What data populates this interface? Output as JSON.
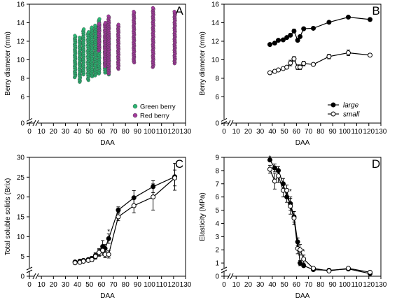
{
  "chart_data": [
    {
      "type": "scatter",
      "panel": "A",
      "xlabel": "DAA",
      "ylabel": "Berry diameter (mm)",
      "xlim": [
        0,
        130
      ],
      "ylim": [
        4,
        16
      ],
      "xticks": [
        0,
        10,
        20,
        30,
        40,
        50,
        60,
        70,
        80,
        90,
        100,
        110,
        120,
        130
      ],
      "yticks": [
        0,
        6,
        8,
        10,
        12,
        14,
        16
      ],
      "axis_break": true,
      "legend_position": "bottom-right",
      "series": [
        {
          "name": "Green berry",
          "color": "#2bb673",
          "columns": [
            {
              "x": 38,
              "min": 8.1,
              "max": 12.6
            },
            {
              "x": 42,
              "min": 7.6,
              "max": 12.4
            },
            {
              "x": 45,
              "min": 8.4,
              "max": 13.3
            },
            {
              "x": 49,
              "min": 7.8,
              "max": 13.0
            },
            {
              "x": 52,
              "min": 8.2,
              "max": 13.5
            },
            {
              "x": 55,
              "min": 8.3,
              "max": 13.7
            },
            {
              "x": 58,
              "min": 8.5,
              "max": 14.4
            },
            {
              "x": 63,
              "min": 8.6,
              "max": 12.4
            },
            {
              "x": 66,
              "min": 8.4,
              "max": 12.8
            }
          ]
        },
        {
          "name": "Red berry",
          "color": "#a23a9c",
          "columns": [
            {
              "x": 58,
              "min": 11.0,
              "max": 13.9
            },
            {
              "x": 63,
              "min": 9.3,
              "max": 14.0
            },
            {
              "x": 66,
              "min": 8.5,
              "max": 14.7
            },
            {
              "x": 74,
              "min": 9.0,
              "max": 13.8
            },
            {
              "x": 87,
              "min": 9.7,
              "max": 15.2
            },
            {
              "x": 103,
              "min": 9.2,
              "max": 15.6
            },
            {
              "x": 121,
              "min": 9.6,
              "max": 15.2
            }
          ]
        }
      ]
    },
    {
      "type": "line",
      "panel": "B",
      "xlabel": "DAA",
      "ylabel": "Berry diameter (mm)",
      "xlim": [
        0,
        130
      ],
      "ylim": [
        4,
        16
      ],
      "xticks": [
        0,
        10,
        20,
        30,
        40,
        50,
        60,
        70,
        80,
        90,
        100,
        110,
        120,
        130
      ],
      "yticks": [
        0,
        6,
        8,
        10,
        12,
        14,
        16
      ],
      "axis_break": true,
      "legend_position": "bottom-right",
      "x": [
        38,
        42,
        45,
        49,
        52,
        55,
        58,
        61,
        63,
        66,
        74,
        87,
        103,
        121
      ],
      "series": [
        {
          "name": "large",
          "marker": "filled",
          "values": [
            11.65,
            11.8,
            12.1,
            12.15,
            12.4,
            12.65,
            13.1,
            12.1,
            12.5,
            13.35,
            13.4,
            14.05,
            14.6,
            14.35
          ],
          "errors": [
            0.1,
            0.1,
            0.1,
            0.1,
            0.1,
            0.15,
            0.2,
            0.15,
            0.15,
            0.1,
            0.15,
            0.1,
            0.15,
            0.12
          ]
        },
        {
          "name": "small",
          "marker": "open",
          "values": [
            8.6,
            8.75,
            8.9,
            9.05,
            9.2,
            9.65,
            10.1,
            9.2,
            9.2,
            9.6,
            9.5,
            10.35,
            10.75,
            10.5
          ],
          "errors": [
            0.1,
            0.1,
            0.15,
            0.15,
            0.15,
            0.3,
            0.25,
            0.25,
            0.25,
            0.25,
            0.15,
            0.25,
            0.3,
            0.15
          ]
        }
      ]
    },
    {
      "type": "line",
      "panel": "C",
      "xlabel": "DAA",
      "ylabel": "Total soluble solids (Brix)",
      "xlim": [
        0,
        130
      ],
      "ylim": [
        0,
        30
      ],
      "xticks": [
        0,
        10,
        20,
        30,
        40,
        50,
        60,
        70,
        80,
        90,
        100,
        110,
        120,
        130
      ],
      "yticks": [
        0,
        5,
        10,
        15,
        20,
        25,
        30
      ],
      "axis_break": true,
      "x": [
        38,
        42,
        45,
        49,
        52,
        55,
        58,
        61,
        63,
        66,
        74,
        87,
        103,
        121
      ],
      "annotations": [
        {
          "x": 66,
          "y": 11.6,
          "text": "*"
        }
      ],
      "series": [
        {
          "name": "",
          "marker": "filled",
          "values": [
            3.6,
            3.8,
            4.0,
            4.2,
            4.5,
            5.2,
            6.0,
            7.5,
            7.0,
            9.5,
            16.7,
            19.8,
            22.6,
            25.1
          ],
          "errors": [
            0.3,
            0.3,
            0.3,
            0.4,
            0.5,
            0.7,
            1.0,
            1.5,
            1.0,
            1.2,
            0.8,
            1.8,
            1.5,
            3.4
          ]
        },
        {
          "name": "",
          "marker": "open",
          "values": [
            3.4,
            3.5,
            3.8,
            4.0,
            4.2,
            5.0,
            6.0,
            6.5,
            5.5,
            5.5,
            15.0,
            17.8,
            20.0,
            24.8
          ],
          "errors": [
            0.3,
            0.3,
            0.3,
            0.4,
            0.5,
            0.7,
            0.8,
            1.2,
            0.8,
            0.9,
            1.0,
            1.8,
            3.3,
            2.0
          ]
        }
      ]
    },
    {
      "type": "line",
      "panel": "D",
      "xlabel": "DAA",
      "ylabel": "Elasticity (MPa)",
      "xlim": [
        0,
        130
      ],
      "ylim": [
        0,
        9
      ],
      "xticks": [
        0,
        10,
        20,
        30,
        40,
        50,
        60,
        70,
        80,
        90,
        100,
        110,
        120,
        130
      ],
      "yticks": [
        0,
        1,
        2,
        3,
        4,
        5,
        6,
        7,
        8,
        9
      ],
      "axis_break": true,
      "x": [
        38,
        42,
        45,
        49,
        52,
        55,
        58,
        61,
        63,
        66,
        74,
        87,
        103,
        121
      ],
      "annotations": [
        {
          "x": 38,
          "y": 9.05,
          "text": "*"
        },
        {
          "x": 55,
          "y": 6.5,
          "text": "*"
        },
        {
          "x": 66,
          "y": 1.95,
          "text": "*"
        }
      ],
      "series": [
        {
          "name": "",
          "marker": "filled",
          "values": [
            8.8,
            8.2,
            8.0,
            7.0,
            6.0,
            5.5,
            4.5,
            2.6,
            1.0,
            0.8,
            0.5,
            0.45,
            0.55,
            0.2
          ],
          "errors": [
            0.1,
            0.3,
            0.3,
            0.4,
            0.4,
            0.5,
            0.4,
            0.3,
            0.2,
            0.1,
            0.1,
            0.05,
            0.1,
            0.05
          ]
        },
        {
          "name": "",
          "marker": "open",
          "values": [
            8.1,
            7.2,
            7.6,
            6.5,
            6.5,
            5.3,
            4.4,
            2.1,
            2.0,
            1.3,
            0.6,
            0.4,
            0.6,
            0.3
          ],
          "errors": [
            0.3,
            0.6,
            0.5,
            0.5,
            0.4,
            0.6,
            0.5,
            0.4,
            0.4,
            0.3,
            0.1,
            0.05,
            0.1,
            0.05
          ]
        }
      ]
    }
  ]
}
